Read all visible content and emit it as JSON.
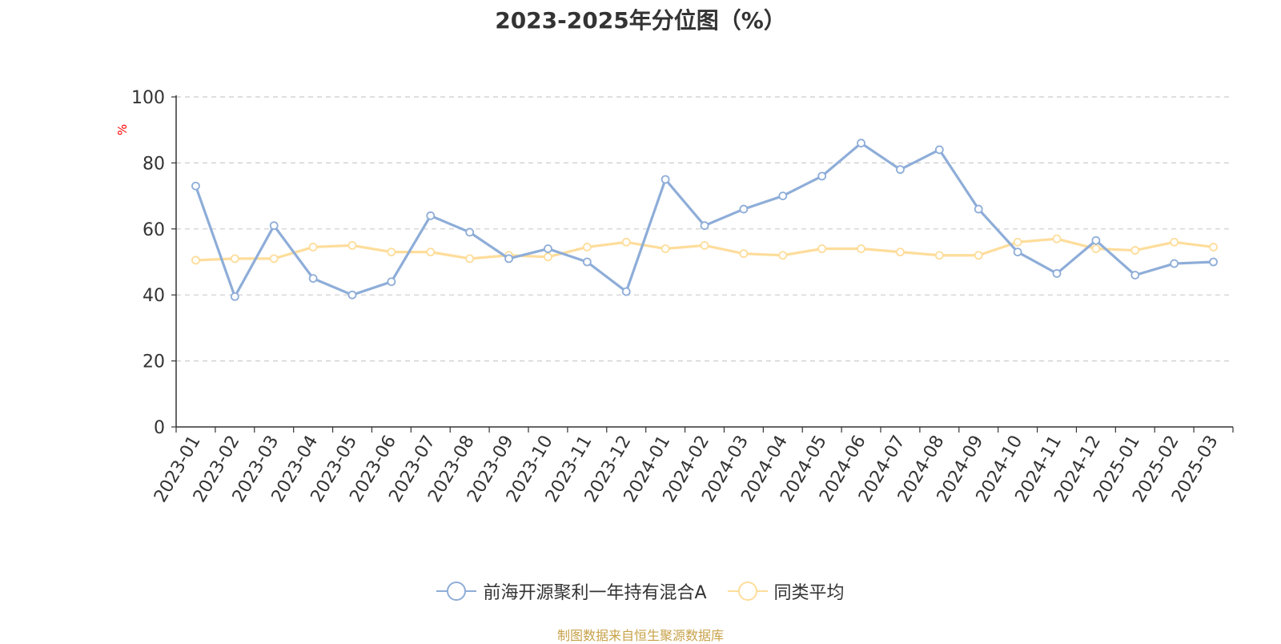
{
  "chart_data": {
    "type": "line",
    "title": "2023-2025年分位图（%）",
    "ylabel": "%",
    "xlabel": "",
    "ylim": [
      0,
      100
    ],
    "yticks": [
      0,
      20,
      40,
      60,
      80,
      100
    ],
    "grid": true,
    "legend_position": "bottom",
    "categories": [
      "2023-01",
      "2023-02",
      "2023-03",
      "2023-04",
      "2023-05",
      "2023-06",
      "2023-07",
      "2023-08",
      "2023-09",
      "2023-10",
      "2023-11",
      "2023-12",
      "2024-01",
      "2024-02",
      "2024-03",
      "2024-04",
      "2024-05",
      "2024-06",
      "2024-07",
      "2024-08",
      "2024-09",
      "2024-10",
      "2024-11",
      "2024-12",
      "2025-01",
      "2025-02",
      "2025-03"
    ],
    "series": [
      {
        "name": "前海开源聚利一年持有混合A",
        "color": "#8eadd8",
        "values": [
          73,
          39.5,
          61,
          45,
          40,
          44,
          64,
          59,
          51,
          54,
          50,
          41,
          75,
          61,
          66,
          70,
          76,
          86,
          78,
          84,
          66,
          53,
          46.5,
          56.5,
          46,
          49.5,
          50
        ]
      },
      {
        "name": "同类平均",
        "color": "#fedd9b",
        "values": [
          50.5,
          51,
          51,
          54.5,
          55,
          53,
          53,
          51,
          52,
          51.5,
          54.5,
          56,
          54,
          55,
          52.5,
          52,
          54,
          54,
          53,
          52,
          52,
          56,
          57,
          54,
          53.5,
          56,
          54.5
        ]
      }
    ],
    "source": "制图数据来自恒生聚源数据库"
  },
  "colors": {
    "axis": "#333333",
    "grid": "#cccccc",
    "ylabel": "#ff0000",
    "source": "#c8a24a"
  }
}
